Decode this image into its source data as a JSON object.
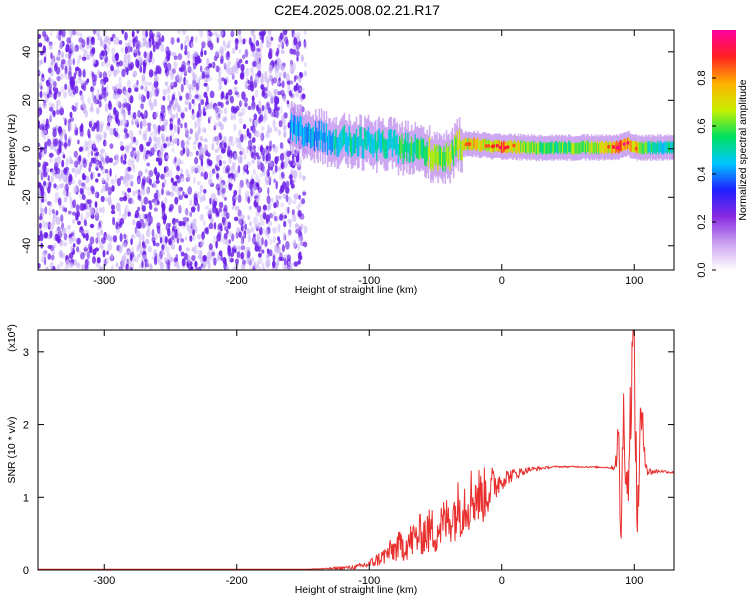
{
  "title": "C2E4.2025.008.02.21.R17",
  "colors": {
    "snr_line": "#e8302e",
    "speckle": "#6a1ee8",
    "speckle_light": "#c9b2f5",
    "colormap": [
      "#ffffff",
      "#c9a2f0",
      "#8a2be2",
      "#1e1eff",
      "#00c8ff",
      "#00e060",
      "#c8f000",
      "#ffb000",
      "#ff2020",
      "#ff00a0"
    ]
  },
  "chart_data": [
    {
      "type": "heatmap",
      "name": "spectrogram",
      "xlabel": "Height of straight line (km)",
      "ylabel": "Frequency (Hz)",
      "xlim": [
        -350,
        130
      ],
      "ylim": [
        -50,
        49
      ],
      "x_ticks": [
        -300,
        -200,
        -100,
        0,
        100
      ],
      "x_tick_labels": [
        "-300",
        "-200",
        "-100",
        "0",
        "100"
      ],
      "y_ticks": [
        -40,
        -20,
        0,
        20,
        40
      ],
      "y_tick_labels": [
        "-40",
        "-20",
        "0",
        "20",
        "40"
      ],
      "grid": false,
      "noise_region": {
        "x": [
          -350,
          -148
        ],
        "amplitude": [
          0.05,
          0.25
        ]
      },
      "signal_band": {
        "x": [
          -160,
          -140,
          -120,
          -100,
          -80,
          -60,
          -50,
          -40,
          -35,
          -30,
          -20,
          -10,
          0,
          20,
          40,
          60,
          80,
          90,
          95,
          100,
          110,
          130
        ],
        "center_freq": [
          8,
          5,
          3,
          2,
          1,
          -1,
          -3,
          -3,
          0,
          2,
          2,
          1,
          1,
          0.5,
          0.5,
          0.5,
          0.5,
          1,
          2,
          0.5,
          0.5,
          0.5
        ],
        "peak_amplitude": [
          0.45,
          0.5,
          0.55,
          0.55,
          0.6,
          0.65,
          0.75,
          0.7,
          0.7,
          0.75,
          0.85,
          0.8,
          0.9,
          0.7,
          0.65,
          0.7,
          0.8,
          0.95,
          0.9,
          0.85,
          0.6,
          0.55
        ]
      },
      "colorbar": {
        "label": "Normalized spectral amplitude",
        "range": [
          0,
          1
        ],
        "ticks": [
          0.0,
          0.2,
          0.4,
          0.6,
          0.8
        ],
        "tick_labels": [
          "0.0",
          "0.2",
          "0.4",
          "0.6",
          "0.8"
        ]
      }
    },
    {
      "type": "line",
      "name": "snr",
      "xlabel": "Height of straight line (km)",
      "ylabel": "SNR (10 * v/v)",
      "y_scale_note": "(x10",
      "y_scale_exp": "4",
      "xlim": [
        -350,
        130
      ],
      "ylim": [
        0,
        3.3
      ],
      "x_ticks": [
        -300,
        -200,
        -100,
        0,
        100
      ],
      "x_tick_labels": [
        "-300",
        "-200",
        "-100",
        "0",
        "100"
      ],
      "y_ticks": [
        0,
        1,
        2,
        3
      ],
      "y_tick_labels": [
        "0",
        "1",
        "2",
        "3"
      ],
      "grid": false,
      "series": [
        {
          "x": [
            -350,
            -300,
            -200,
            -150,
            -130,
            -110,
            -100,
            -90,
            -80,
            -70,
            -60,
            -50,
            -40,
            -30,
            -20,
            -15,
            -10,
            0,
            10,
            20,
            30,
            40,
            60,
            80,
            85,
            88,
            90,
            92,
            95,
            98,
            100,
            102,
            105,
            110,
            120,
            130
          ],
          "y": [
            0.01,
            0.01,
            0.01,
            0.01,
            0.02,
            0.04,
            0.08,
            0.18,
            0.3,
            0.38,
            0.5,
            0.55,
            0.7,
            0.9,
            1.05,
            1.0,
            1.1,
            1.25,
            1.32,
            1.38,
            1.4,
            1.42,
            1.42,
            1.41,
            1.4,
            1.8,
            0.5,
            2.2,
            1.0,
            2.7,
            3.2,
            0.6,
            2.1,
            1.35,
            1.36,
            1.34
          ],
          "noise_amplitude": [
            0,
            0,
            0,
            0,
            0.01,
            0.03,
            0.06,
            0.12,
            0.2,
            0.25,
            0.3,
            0.35,
            0.35,
            0.45,
            0.45,
            0.4,
            0.35,
            0.15,
            0.08,
            0.04,
            0.02,
            0.01,
            0.01,
            0.01,
            0.03,
            0.4,
            0.4,
            0.5,
            0.5,
            0.6,
            0.7,
            0.6,
            0.4,
            0.06,
            0.02,
            0.02
          ]
        }
      ]
    }
  ]
}
